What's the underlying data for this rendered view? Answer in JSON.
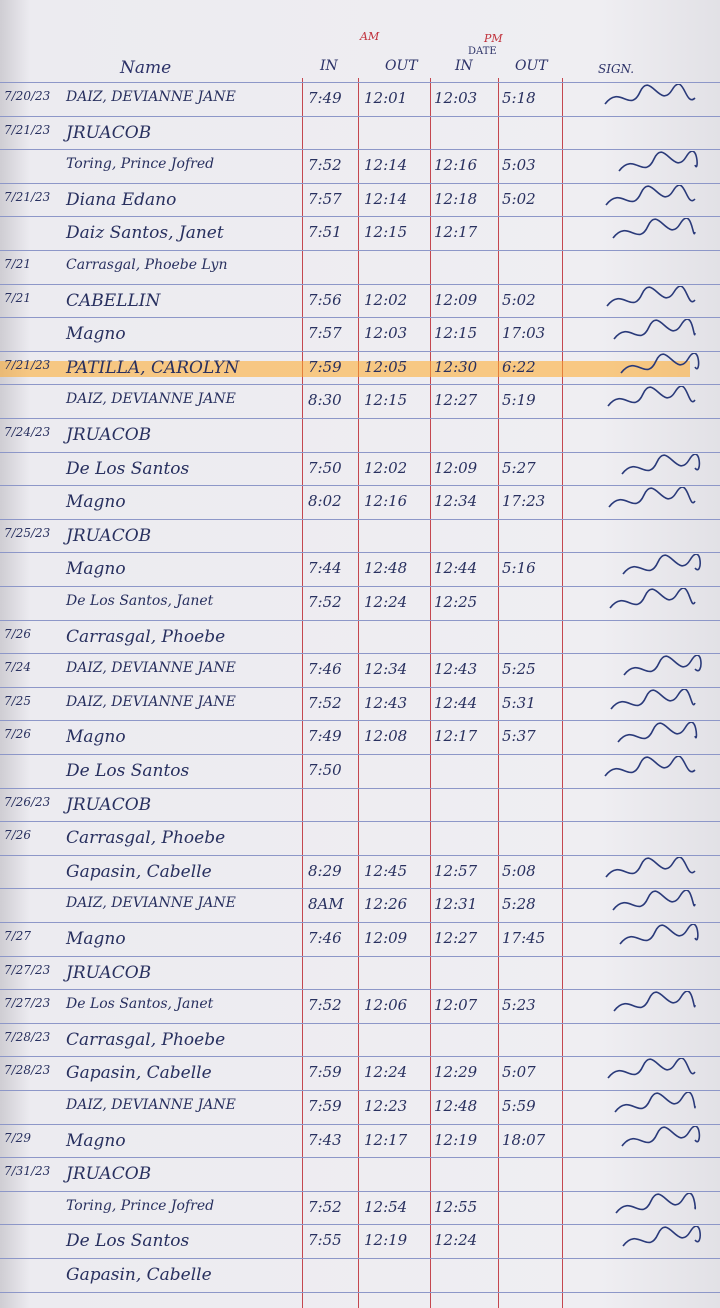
{
  "header": {
    "date": "DATE",
    "am": "AM",
    "pm": "PM",
    "name": "Name",
    "am_in": "IN",
    "am_out": "OUT",
    "pm_in": "IN",
    "pm_out": "OUT",
    "sign": "SIGN."
  },
  "table": {
    "rows": [
      {
        "date": "7/20/23",
        "name": "DAIZ, DEVIANNE JANE",
        "am_in": "7:49",
        "am_out": "12:01",
        "pm_in": "12:03",
        "pm_out": "5:18"
      },
      {
        "date": "7/21/23",
        "name": "JRUACOB"
      },
      {
        "name": "Toring, Prince Jofred",
        "am_in": "7:52",
        "am_out": "12:14",
        "pm_in": "12:16",
        "pm_out": "5:03"
      },
      {
        "date": "7/21/23",
        "name": "Diana Edano",
        "am_in": "7:57",
        "am_out": "12:14",
        "pm_in": "12:18",
        "pm_out": "5:02"
      },
      {
        "name": "Daiz Santos, Janet",
        "am_in": "7:51",
        "am_out": "12:15",
        "pm_in": "12:17"
      },
      {
        "date": "7/21",
        "name": "Carrasgal, Phoebe Lyn"
      },
      {
        "date": "7/21",
        "name": "CABELLIN",
        "am_in": "7:56",
        "am_out": "12:02",
        "pm_in": "12:09",
        "pm_out": "5:02"
      },
      {
        "name": "Magno",
        "am_in": "7:57",
        "am_out": "12:03",
        "pm_in": "12:15",
        "pm_out": "17:03"
      },
      {
        "date": "7/21/23",
        "name": "PATILLA, CAROLYN",
        "am_in": "7:59",
        "am_out": "12:05",
        "pm_in": "12:30",
        "pm_out": "6:22",
        "highlighted": true
      },
      {
        "name": "DAIZ, DEVIANNE JANE",
        "am_in": "8:30",
        "am_out": "12:15",
        "pm_in": "12:27",
        "pm_out": "5:19"
      },
      {
        "date": "7/24/23",
        "name": "JRUACOB"
      },
      {
        "name": "De Los Santos",
        "am_in": "7:50",
        "am_out": "12:02",
        "pm_in": "12:09",
        "pm_out": "5:27"
      },
      {
        "name": "Magno",
        "am_in": "8:02",
        "am_out": "12:16",
        "pm_in": "12:34",
        "pm_out": "17:23"
      },
      {
        "date": "7/25/23",
        "name": "JRUACOB"
      },
      {
        "name": "Magno",
        "am_in": "7:44",
        "am_out": "12:48",
        "pm_in": "12:44",
        "pm_out": "5:16"
      },
      {
        "name": "De Los Santos, Janet",
        "am_in": "7:52",
        "am_out": "12:24",
        "pm_in": "12:25"
      },
      {
        "date": "7/26",
        "name": "Carrasgal, Phoebe"
      },
      {
        "date": "7/24",
        "name": "DAIZ, DEVIANNE JANE",
        "am_in": "7:46",
        "am_out": "12:34",
        "pm_in": "12:43",
        "pm_out": "5:25"
      },
      {
        "date": "7/25",
        "name": "DAIZ, DEVIANNE JANE",
        "am_in": "7:52",
        "am_out": "12:43",
        "pm_in": "12:44",
        "pm_out": "5:31"
      },
      {
        "date": "7/26",
        "name": "Magno",
        "am_in": "7:49",
        "am_out": "12:08",
        "pm_in": "12:17",
        "pm_out": "5:37"
      },
      {
        "name": "De Los Santos",
        "am_in": "7:50"
      },
      {
        "date": "7/26/23",
        "name": "JRUACOB"
      },
      {
        "date": "7/26",
        "name": "Carrasgal, Phoebe"
      },
      {
        "name": "Gapasin, Cabelle",
        "am_in": "8:29",
        "am_out": "12:45",
        "pm_in": "12:57",
        "pm_out": "5:08"
      },
      {
        "name": "DAIZ, DEVIANNE JANE",
        "am_in": "8AM",
        "am_out": "12:26",
        "pm_in": "12:31",
        "pm_out": "5:28"
      },
      {
        "date": "7/27",
        "name": "Magno",
        "am_in": "7:46",
        "am_out": "12:09",
        "pm_in": "12:27",
        "pm_out": "17:45"
      },
      {
        "date": "7/27/23",
        "name": "JRUACOB"
      },
      {
        "date": "7/27/23",
        "name": "De Los Santos, Janet",
        "am_in": "7:52",
        "am_out": "12:06",
        "pm_in": "12:07",
        "pm_out": "5:23"
      },
      {
        "date": "7/28/23",
        "name": "Carrasgal, Phoebe"
      },
      {
        "date": "7/28/23",
        "name": "Gapasin, Cabelle",
        "am_in": "7:59",
        "am_out": "12:24",
        "pm_in": "12:29",
        "pm_out": "5:07"
      },
      {
        "name": "DAIZ, DEVIANNE JANE",
        "am_in": "7:59",
        "am_out": "12:23",
        "pm_in": "12:48",
        "pm_out": "5:59"
      },
      {
        "date": "7/29",
        "name": "Magno",
        "am_in": "7:43",
        "am_out": "12:17",
        "pm_in": "12:19",
        "pm_out": "18:07"
      },
      {
        "date": "7/31/23",
        "name": "JRUACOB"
      },
      {
        "name": "Toring, Prince Jofred",
        "am_in": "7:52",
        "am_out": "12:54",
        "pm_in": "12:55"
      },
      {
        "name": "De Los Santos",
        "am_in": "7:55",
        "am_out": "12:19",
        "pm_in": "12:24"
      },
      {
        "name": "Gapasin, Cabelle"
      }
    ]
  }
}
